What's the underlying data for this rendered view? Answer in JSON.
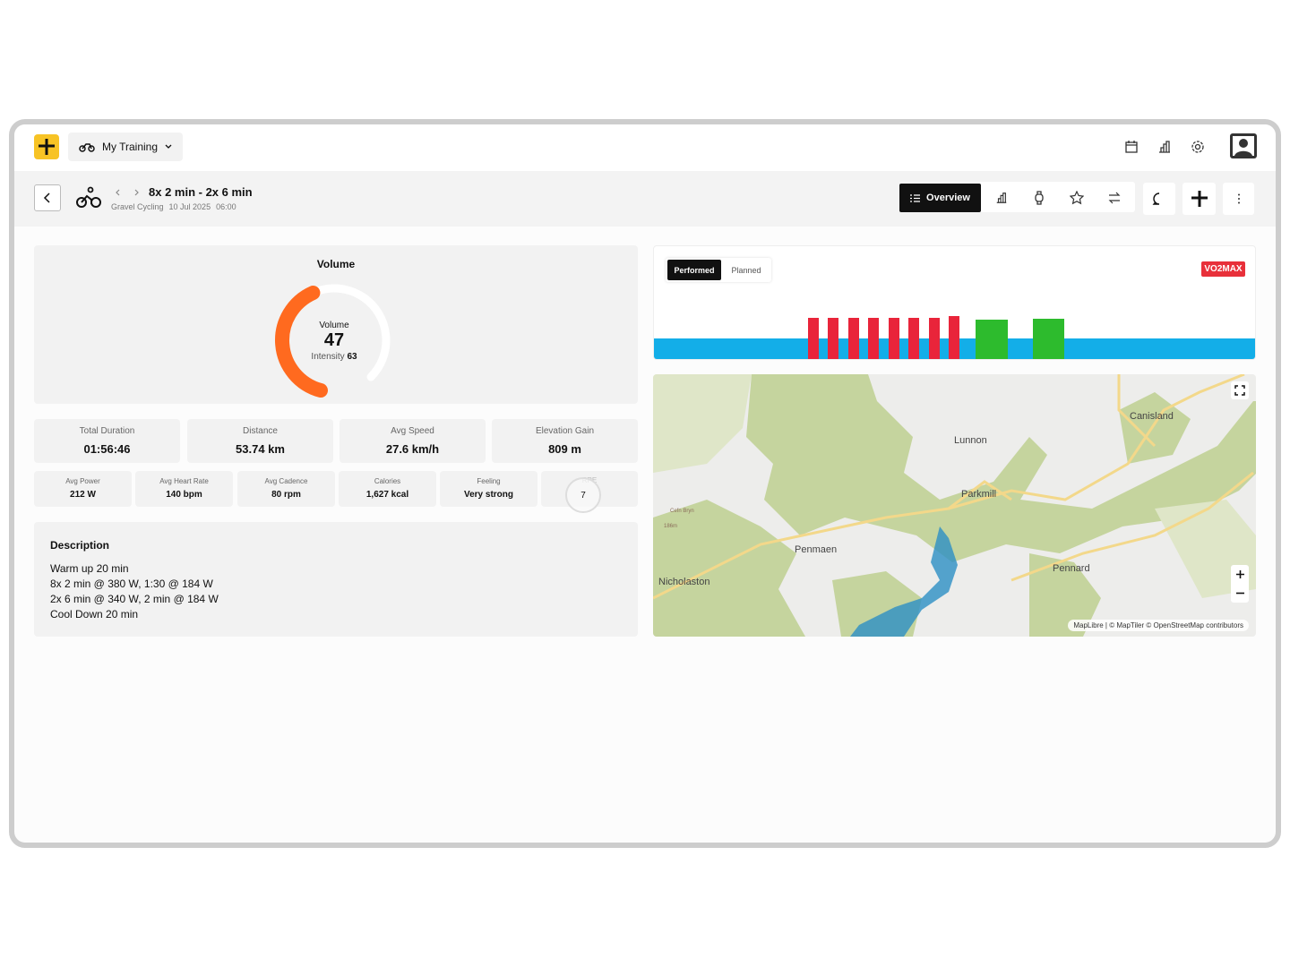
{
  "app": {
    "menu_label": "My Training"
  },
  "activity": {
    "title": "8x 2 min - 2x 6 min",
    "sport": "Gravel Cycling",
    "date": "10 Jul 2025",
    "time": "06:00"
  },
  "toolbar": {
    "active_tab": "Overview"
  },
  "volume": {
    "title": "Volume",
    "label": "Volume",
    "value": 47,
    "intensity_label": "Intensity",
    "intensity": 63
  },
  "metrics": [
    {
      "label": "Total Duration",
      "value": "01:56:46"
    },
    {
      "label": "Distance",
      "value": "53.74 km"
    },
    {
      "label": "Avg Speed",
      "value": "27.6 km/h"
    },
    {
      "label": "Elevation Gain",
      "value": "809 m"
    }
  ],
  "metrics_small": [
    {
      "label": "Avg Power",
      "value": "212 W"
    },
    {
      "label": "Avg Heart Rate",
      "value": "140 bpm"
    },
    {
      "label": "Avg Cadence",
      "value": "80 rpm"
    },
    {
      "label": "Calories",
      "value": "1,627 kcal"
    },
    {
      "label": "Feeling",
      "value": "Very strong"
    }
  ],
  "rpe": {
    "label": "RPE",
    "value": 7
  },
  "description": {
    "title": "Description",
    "lines": [
      "Warm up 20 min",
      "8x 2 min @ 380 W, 1:30 @ 184 W",
      "2x 6 min @ 340 W, 2 min @ 184 W",
      "Cool Down 20 min"
    ]
  },
  "workout": {
    "toggle": [
      "Performed",
      "Planned"
    ],
    "badge": "VO2MAX"
  },
  "map": {
    "places": [
      "Canisland",
      "Lunnon",
      "Parkmill",
      "Penmaen",
      "Pennard",
      "Nicholaston",
      "Cefn Bryn",
      "186m"
    ],
    "attribution": "MapLibre | © MapTiler © OpenStreetMap contributors"
  }
}
